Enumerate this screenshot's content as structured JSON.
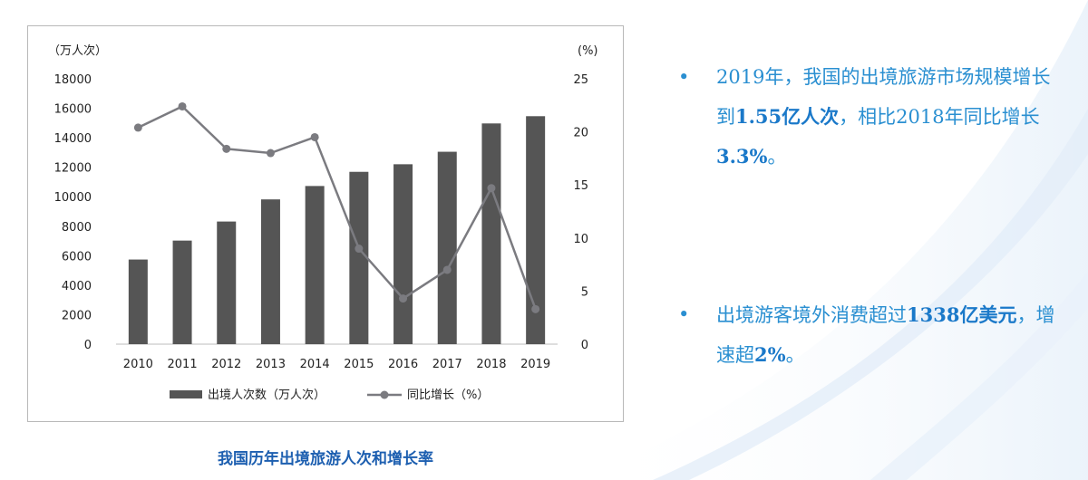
{
  "colors": {
    "bar": "#555555",
    "line": "#7b7b80",
    "text_blue": "#2a8fd1",
    "caption_blue": "#1d5fb0"
  },
  "caption": "我国历年出境旅游人次和增长率",
  "bullets": [
    {
      "parts": [
        {
          "text": "2019年，我国的出境旅游市场规模增长到",
          "bold": false
        },
        {
          "text": "1.55亿人次",
          "bold": true
        },
        {
          "text": "，相比2018年同比增长",
          "bold": false
        },
        {
          "text": "3.3%",
          "bold": true
        },
        {
          "text": "。",
          "bold": false
        }
      ]
    },
    {
      "parts": [
        {
          "text": "出境游客境外消费超过",
          "bold": false
        },
        {
          "text": "1338亿美元",
          "bold": true
        },
        {
          "text": "，增速超",
          "bold": false
        },
        {
          "text": "2%",
          "bold": true
        },
        {
          "text": "。",
          "bold": false
        }
      ]
    }
  ],
  "chart_data": {
    "type": "bar+line",
    "categories": [
      "2010",
      "2011",
      "2012",
      "2013",
      "2014",
      "2015",
      "2016",
      "2017",
      "2018",
      "2019"
    ],
    "series": [
      {
        "name": "出境人次数（万人次）",
        "type": "bar",
        "axis": "left",
        "values": [
          5740,
          7025,
          8318,
          9819,
          10728,
          11689,
          12203,
          13051,
          14972,
          15463
        ]
      },
      {
        "name": "同比增长（%）",
        "type": "line",
        "axis": "right",
        "values": [
          20.4,
          22.4,
          18.4,
          18.0,
          19.5,
          9.0,
          4.3,
          7.0,
          14.7,
          3.3
        ]
      }
    ],
    "ylabel_left": "（万人次）",
    "ylabel_right": "(%)",
    "ylim_left": [
      0,
      18000
    ],
    "ylim_right": [
      0,
      25
    ],
    "yticks_left": [
      "0",
      "2000",
      "4000",
      "6000",
      "8000",
      "10000",
      "12000",
      "14000",
      "16000",
      "18000"
    ],
    "yticks_right": [
      "0",
      "5",
      "10",
      "15",
      "20",
      "25"
    ],
    "grid": false,
    "legend": "bottom"
  }
}
